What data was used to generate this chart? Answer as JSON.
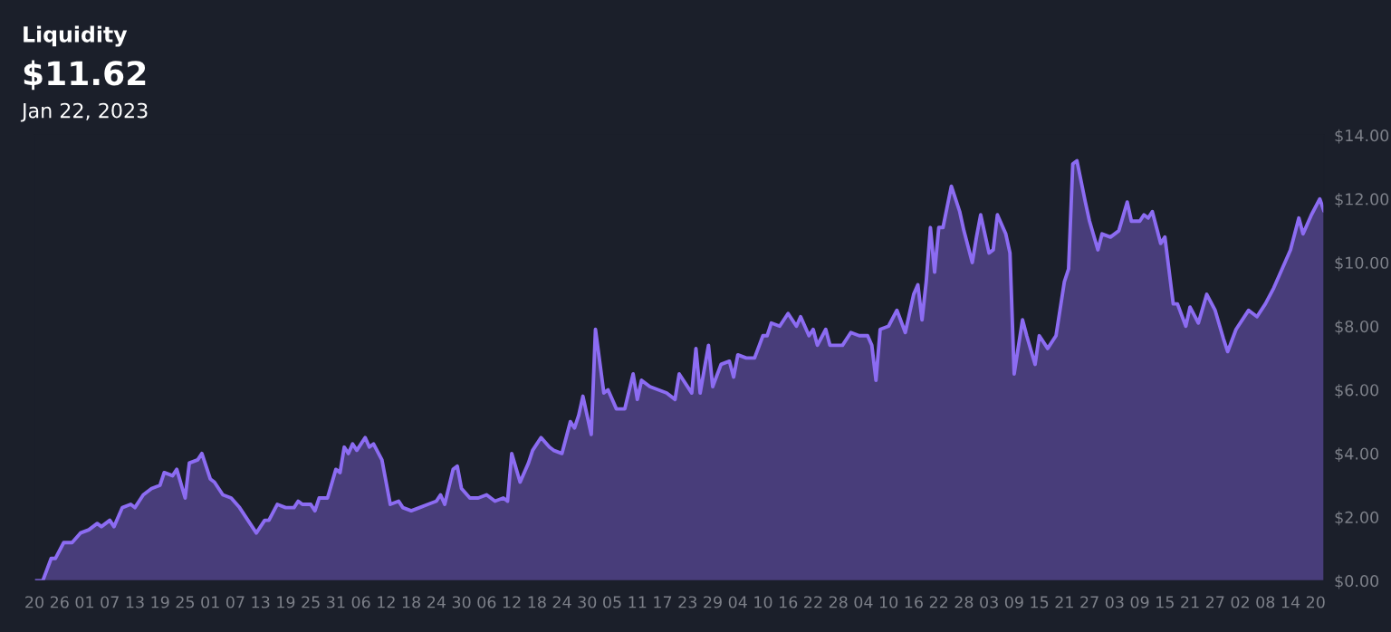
{
  "chart_data": {
    "type": "area",
    "title": "Liquidity",
    "subtitle": "$11.62",
    "annotations": [
      "Jan 22, 2023"
    ],
    "x": [
      "2022-03-20",
      "2022-03-22",
      "2022-03-24",
      "2022-03-25",
      "2022-03-27",
      "2022-03-29",
      "2022-03-31",
      "2022-04-02",
      "2022-04-04",
      "2022-04-05",
      "2022-04-07",
      "2022-04-08",
      "2022-04-10",
      "2022-04-12",
      "2022-04-13",
      "2022-04-15",
      "2022-04-17",
      "2022-04-19",
      "2022-04-20",
      "2022-04-22",
      "2022-04-23",
      "2022-04-25",
      "2022-04-26",
      "2022-04-28",
      "2022-04-29",
      "2022-05-01",
      "2022-05-02",
      "2022-05-04",
      "2022-05-06",
      "2022-05-08",
      "2022-05-10",
      "2022-05-12",
      "2022-05-14",
      "2022-05-15",
      "2022-05-17",
      "2022-05-19",
      "2022-05-21",
      "2022-05-22",
      "2022-05-23",
      "2022-05-25",
      "2022-05-26",
      "2022-05-27",
      "2022-05-29",
      "2022-05-31",
      "2022-06-01",
      "2022-06-02",
      "2022-06-03",
      "2022-06-04",
      "2022-06-05",
      "2022-06-07",
      "2022-06-08",
      "2022-06-09",
      "2022-06-11",
      "2022-06-13",
      "2022-06-15",
      "2022-06-16",
      "2022-06-18",
      "2022-06-20",
      "2022-06-22",
      "2022-06-24",
      "2022-06-25",
      "2022-06-26",
      "2022-06-28",
      "2022-06-29",
      "2022-06-30",
      "2022-07-02",
      "2022-07-04",
      "2022-07-06",
      "2022-07-08",
      "2022-07-10",
      "2022-07-11",
      "2022-07-12",
      "2022-07-14",
      "2022-07-16",
      "2022-07-17",
      "2022-07-19",
      "2022-07-21",
      "2022-07-22",
      "2022-07-24",
      "2022-07-26",
      "2022-07-27",
      "2022-07-28",
      "2022-07-29",
      "2022-07-31",
      "2022-08-01",
      "2022-08-03",
      "2022-08-04",
      "2022-08-06",
      "2022-08-08",
      "2022-08-10",
      "2022-08-11",
      "2022-08-12",
      "2022-08-14",
      "2022-08-16",
      "2022-08-18",
      "2022-08-20",
      "2022-08-21",
      "2022-08-24",
      "2022-08-25",
      "2022-08-26",
      "2022-08-28",
      "2022-08-29",
      "2022-08-31",
      "2022-09-02",
      "2022-09-03",
      "2022-09-04",
      "2022-09-06",
      "2022-09-08",
      "2022-09-10",
      "2022-09-11",
      "2022-09-12",
      "2022-09-14",
      "2022-09-16",
      "2022-09-18",
      "2022-09-19",
      "2022-09-21",
      "2022-09-22",
      "2022-09-23",
      "2022-09-25",
      "2022-09-26",
      "2022-09-29",
      "2022-10-01",
      "2022-10-03",
      "2022-10-05",
      "2022-10-06",
      "2022-10-07",
      "2022-10-08",
      "2022-10-10",
      "2022-10-12",
      "2022-10-14",
      "2022-10-16",
      "2022-10-17",
      "2022-10-18",
      "2022-10-19",
      "2022-10-20",
      "2022-10-21",
      "2022-10-22",
      "2022-10-23",
      "2022-10-25",
      "2022-10-27",
      "2022-10-28",
      "2022-10-30",
      "2022-10-31",
      "2022-11-01",
      "2022-11-03",
      "2022-11-04",
      "2022-11-05",
      "2022-11-07",
      "2022-11-08",
      "2022-11-09",
      "2022-11-11",
      "2022-11-12",
      "2022-11-14",
      "2022-11-15",
      "2022-11-17",
      "2022-11-19",
      "2022-11-21",
      "2022-11-22",
      "2022-11-23",
      "2022-11-24",
      "2022-11-26",
      "2022-11-27",
      "2022-11-29",
      "2022-11-30",
      "2022-12-02",
      "2022-12-04",
      "2022-12-06",
      "2022-12-07",
      "2022-12-09",
      "2022-12-10",
      "2022-12-11",
      "2022-12-12",
      "2022-12-14",
      "2022-12-15",
      "2022-12-17",
      "2022-12-18",
      "2022-12-20",
      "2022-12-21",
      "2022-12-23",
      "2022-12-25",
      "2022-12-27",
      "2022-12-29",
      "2022-12-30",
      "2023-01-01",
      "2023-01-04",
      "2023-01-06",
      "2023-01-08",
      "2023-01-10",
      "2023-01-12",
      "2023-01-14",
      "2023-01-16",
      "2023-01-17",
      "2023-01-19",
      "2023-01-21",
      "2023-01-22"
    ],
    "series": [
      {
        "color": "#8c6cf2",
        "values": [
          0,
          0,
          0.7,
          0.7,
          1.2,
          1.2,
          1.5,
          1.6,
          1.8,
          1.7,
          1.9,
          1.7,
          2.3,
          2.4,
          2.3,
          2.7,
          2.9,
          3.0,
          3.4,
          3.3,
          3.5,
          2.6,
          3.7,
          3.8,
          4.0,
          3.2,
          3.1,
          2.7,
          2.6,
          2.3,
          1.9,
          1.5,
          1.9,
          1.9,
          2.4,
          2.3,
          2.3,
          2.5,
          2.4,
          2.4,
          2.2,
          2.6,
          2.6,
          3.5,
          3.4,
          4.2,
          4.0,
          4.3,
          4.1,
          4.5,
          4.2,
          4.3,
          3.8,
          2.4,
          2.5,
          2.3,
          2.2,
          2.3,
          2.4,
          2.5,
          2.7,
          2.4,
          3.5,
          3.6,
          2.9,
          2.6,
          2.6,
          2.7,
          2.5,
          2.6,
          2.5,
          4.0,
          3.1,
          3.7,
          4.1,
          4.5,
          4.2,
          4.1,
          4.0,
          5.0,
          4.8,
          5.2,
          5.8,
          4.6,
          7.9,
          5.9,
          6.0,
          5.4,
          5.4,
          6.5,
          5.7,
          6.3,
          6.1,
          6.0,
          5.9,
          5.7,
          6.5,
          5.9,
          7.3,
          5.9,
          7.4,
          6.1,
          6.8,
          6.9,
          6.4,
          7.1,
          7.0,
          7.0,
          7.7,
          7.7,
          8.1,
          8.0,
          8.4,
          8.0,
          8.3,
          7.7,
          7.9,
          7.4,
          7.9,
          7.4,
          7.4,
          7.8,
          7.7,
          7.7,
          7.4,
          6.3,
          7.9,
          8.0,
          8.5,
          7.8,
          9.0,
          9.3,
          8.2,
          9.4,
          11.1,
          9.7,
          11.1,
          11.1,
          12.4,
          11.6,
          11.0,
          10.0,
          10.8,
          11.5,
          10.3,
          10.4,
          11.5,
          10.9,
          10.3,
          6.5,
          8.2,
          7.7,
          6.8,
          7.7,
          7.3,
          7.7,
          9.4,
          9.8,
          13.1,
          13.2,
          11.9,
          11.3,
          10.4,
          10.9,
          10.8,
          11.0,
          11.9,
          11.3,
          11.3,
          11.5,
          11.4,
          11.6,
          10.6,
          10.8,
          8.7,
          8.7,
          8.0,
          8.6,
          8.1,
          9.0,
          8.5,
          7.6,
          7.2,
          7.9,
          8.5,
          8.3,
          8.7,
          9.2,
          9.8,
          10.4,
          11.4,
          10.9,
          11.5,
          12.0,
          11.62
        ]
      }
    ],
    "xlim": [
      "2022-03-20",
      "2023-01-22"
    ],
    "xticks": [
      {
        "value": "2022-03-20",
        "label": "20"
      },
      {
        "value": "2022-03-26",
        "label": "26"
      },
      {
        "value": "2022-04-01",
        "label": "01"
      },
      {
        "value": "2022-04-07",
        "label": "07"
      },
      {
        "value": "2022-04-13",
        "label": "13"
      },
      {
        "value": "2022-04-19",
        "label": "19"
      },
      {
        "value": "2022-04-25",
        "label": "25"
      },
      {
        "value": "2022-05-01",
        "label": "01"
      },
      {
        "value": "2022-05-07",
        "label": "07"
      },
      {
        "value": "2022-05-13",
        "label": "13"
      },
      {
        "value": "2022-05-19",
        "label": "19"
      },
      {
        "value": "2022-05-25",
        "label": "25"
      },
      {
        "value": "2022-05-31",
        "label": "31"
      },
      {
        "value": "2022-06-06",
        "label": "06"
      },
      {
        "value": "2022-06-12",
        "label": "12"
      },
      {
        "value": "2022-06-18",
        "label": "18"
      },
      {
        "value": "2022-06-24",
        "label": "24"
      },
      {
        "value": "2022-06-30",
        "label": "30"
      },
      {
        "value": "2022-07-06",
        "label": "06"
      },
      {
        "value": "2022-07-12",
        "label": "12"
      },
      {
        "value": "2022-07-18",
        "label": "18"
      },
      {
        "value": "2022-07-24",
        "label": "24"
      },
      {
        "value": "2022-07-30",
        "label": "30"
      },
      {
        "value": "2022-08-05",
        "label": "05"
      },
      {
        "value": "2022-08-11",
        "label": "11"
      },
      {
        "value": "2022-08-17",
        "label": "17"
      },
      {
        "value": "2022-08-23",
        "label": "23"
      },
      {
        "value": "2022-08-29",
        "label": "29"
      },
      {
        "value": "2022-09-04",
        "label": "04"
      },
      {
        "value": "2022-09-10",
        "label": "10"
      },
      {
        "value": "2022-09-16",
        "label": "16"
      },
      {
        "value": "2022-09-22",
        "label": "22"
      },
      {
        "value": "2022-09-28",
        "label": "28"
      },
      {
        "value": "2022-10-04",
        "label": "04"
      },
      {
        "value": "2022-10-10",
        "label": "10"
      },
      {
        "value": "2022-10-16",
        "label": "16"
      },
      {
        "value": "2022-10-22",
        "label": "22"
      },
      {
        "value": "2022-10-28",
        "label": "28"
      },
      {
        "value": "2022-11-03",
        "label": "03"
      },
      {
        "value": "2022-11-09",
        "label": "09"
      },
      {
        "value": "2022-11-15",
        "label": "15"
      },
      {
        "value": "2022-11-21",
        "label": "21"
      },
      {
        "value": "2022-11-27",
        "label": "27"
      },
      {
        "value": "2022-12-03",
        "label": "03"
      },
      {
        "value": "2022-12-09",
        "label": "09"
      },
      {
        "value": "2022-12-15",
        "label": "15"
      },
      {
        "value": "2022-12-21",
        "label": "21"
      },
      {
        "value": "2022-12-27",
        "label": "27"
      },
      {
        "value": "2023-01-02",
        "label": "02"
      },
      {
        "value": "2023-01-08",
        "label": "08"
      },
      {
        "value": "2023-01-14",
        "label": "14"
      },
      {
        "value": "2023-01-20",
        "label": "20"
      }
    ],
    "ylim": [
      0,
      14
    ],
    "yticks": [
      {
        "value": 0,
        "label": "$0.00"
      },
      {
        "value": 2,
        "label": "$2.00"
      },
      {
        "value": 4,
        "label": "$4.00"
      },
      {
        "value": 6,
        "label": "$6.00"
      },
      {
        "value": 8,
        "label": "$8.00"
      },
      {
        "value": 10,
        "label": "$10.00"
      },
      {
        "value": 12,
        "label": "$12.00"
      },
      {
        "value": 14,
        "label": "$14.00"
      }
    ],
    "grid": false,
    "legend": false
  }
}
